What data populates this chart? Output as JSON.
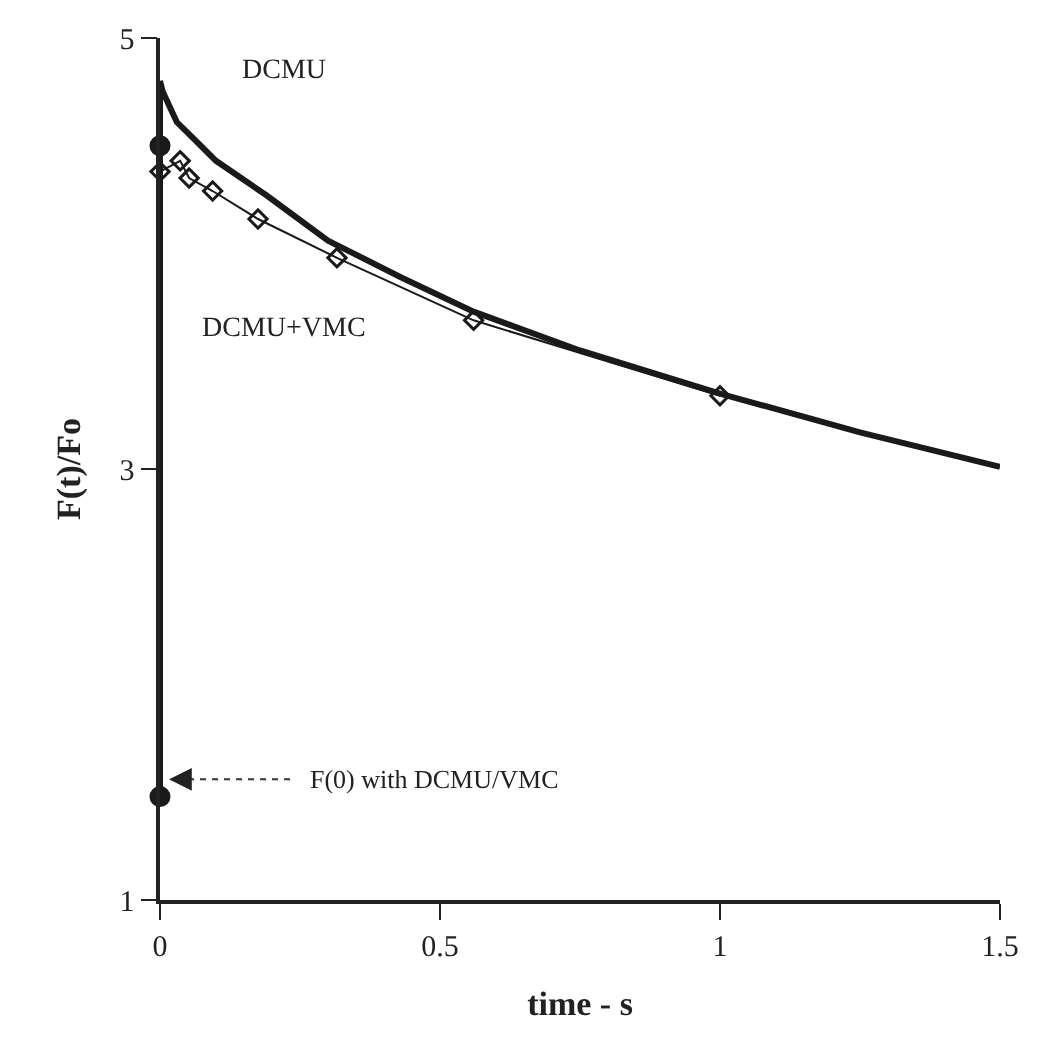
{
  "chart_data": {
    "type": "line",
    "xlabel": "time - s",
    "ylabel": "F(t)/Fo",
    "xlim": [
      0,
      1.5
    ],
    "xticks": [
      0,
      0.5,
      1,
      1.5
    ],
    "ylim": [
      1,
      5
    ],
    "yticks": [
      1,
      3,
      5
    ],
    "grid": false,
    "series": [
      {
        "color": "#1a1a1a",
        "x": [
          0,
          0,
          0.005,
          0.03,
          0.065,
          0.1,
          0.19,
          0.3,
          0.43,
          0.56,
          0.75,
          1,
          1.25,
          1.5
        ],
        "values": [
          1.48,
          4.8,
          4.75,
          4.61,
          4.52,
          4.43,
          4.27,
          4.06,
          3.89,
          3.73,
          3.55,
          3.35,
          3.17,
          3.01
        ],
        "marker": "none"
      },
      {
        "color": "#1a1a1a",
        "x": [
          0,
          0.036,
          0.052,
          0.094,
          0.175,
          0.316,
          0.56,
          1
        ],
        "values": [
          4.38,
          4.43,
          4.35,
          4.29,
          4.16,
          3.98,
          3.69,
          3.34
        ],
        "marker": "diamond"
      },
      {
        "type": "scatter",
        "color": "#1a1a1a",
        "x": [
          0,
          0
        ],
        "values": [
          1.48,
          4.5
        ],
        "marker": "circle"
      }
    ],
    "annotations": [
      "DCMU",
      "DCMU+VMC",
      "F(0) with DCMU/VMC"
    ]
  }
}
